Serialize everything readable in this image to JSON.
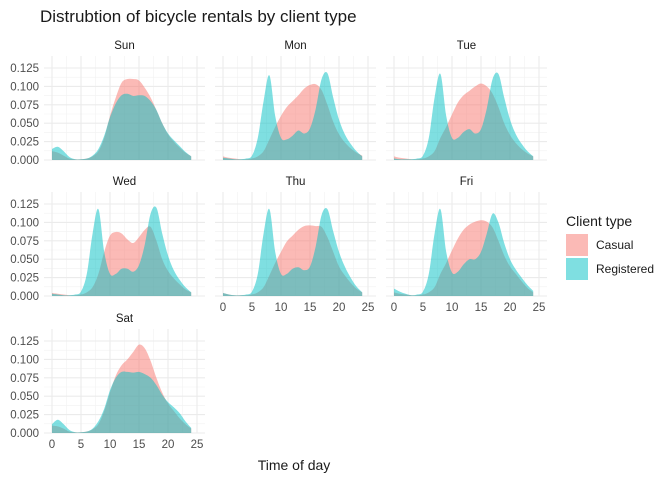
{
  "chart_data": {
    "type": "area",
    "title": "Distrubtion of bicycle rentals by client type",
    "xlabel": "Time of day",
    "ylabel": "",
    "xlim": [
      0,
      25
    ],
    "ylim": [
      0,
      0.125
    ],
    "x_ticks": [
      0,
      5,
      10,
      15,
      20,
      25
    ],
    "x_tick_labels": [
      "0",
      "5",
      "10",
      "15",
      "20",
      "25"
    ],
    "y_ticks": [
      0,
      0.025,
      0.05,
      0.075,
      0.1,
      0.125
    ],
    "y_tick_labels": [
      "0.000",
      "0.025",
      "0.050",
      "0.075",
      "0.100",
      "0.125"
    ],
    "grid": true,
    "legend": {
      "title": "Client type",
      "position": "right",
      "entries": [
        {
          "label": "Casual",
          "color": "#F8766D"
        },
        {
          "label": "Registered",
          "color": "#00BFC4"
        }
      ]
    },
    "facets": [
      {
        "label": "Sun",
        "series": [
          {
            "name": "Casual",
            "x": [
              0,
              1,
              2,
              3,
              4,
              5,
              6,
              7,
              8,
              9,
              10,
              11,
              12,
              13,
              14,
              15,
              16,
              17,
              18,
              19,
              20,
              21,
              22,
              23,
              24
            ],
            "y": [
              0.012,
              0.01,
              0.006,
              0.002,
              0.001,
              0.001,
              0.002,
              0.005,
              0.012,
              0.03,
              0.06,
              0.085,
              0.105,
              0.11,
              0.11,
              0.108,
              0.098,
              0.085,
              0.068,
              0.05,
              0.035,
              0.025,
              0.017,
              0.01,
              0.005
            ]
          },
          {
            "name": "Registered",
            "x": [
              0,
              1,
              2,
              3,
              4,
              5,
              6,
              7,
              8,
              9,
              10,
              11,
              12,
              13,
              14,
              15,
              16,
              17,
              18,
              19,
              20,
              21,
              22,
              23,
              24
            ],
            "y": [
              0.015,
              0.018,
              0.012,
              0.004,
              0.001,
              0.001,
              0.002,
              0.006,
              0.015,
              0.033,
              0.058,
              0.077,
              0.088,
              0.09,
              0.087,
              0.088,
              0.087,
              0.08,
              0.068,
              0.05,
              0.036,
              0.027,
              0.019,
              0.011,
              0.005
            ]
          }
        ]
      },
      {
        "label": "Mon",
        "series": [
          {
            "name": "Casual",
            "x": [
              0,
              1,
              2,
              3,
              4,
              5,
              6,
              7,
              8,
              9,
              10,
              11,
              12,
              13,
              14,
              15,
              16,
              17,
              18,
              19,
              20,
              21,
              22,
              23,
              24
            ],
            "y": [
              0.005,
              0.003,
              0.002,
              0.001,
              0.001,
              0.002,
              0.005,
              0.012,
              0.028,
              0.045,
              0.06,
              0.072,
              0.08,
              0.088,
              0.097,
              0.102,
              0.103,
              0.095,
              0.075,
              0.052,
              0.035,
              0.024,
              0.016,
              0.01,
              0.006
            ]
          },
          {
            "name": "Registered",
            "x": [
              0,
              1,
              2,
              3,
              4,
              5,
              6,
              7,
              8,
              9,
              10,
              11,
              12,
              13,
              14,
              15,
              16,
              17,
              18,
              19,
              20,
              21,
              22,
              23,
              24
            ],
            "y": [
              0.003,
              0.002,
              0.001,
              0.001,
              0.002,
              0.006,
              0.03,
              0.08,
              0.115,
              0.06,
              0.03,
              0.028,
              0.033,
              0.04,
              0.036,
              0.043,
              0.07,
              0.11,
              0.118,
              0.085,
              0.055,
              0.035,
              0.022,
              0.012,
              0.005
            ]
          }
        ]
      },
      {
        "label": "Tue",
        "series": [
          {
            "name": "Casual",
            "x": [
              0,
              1,
              2,
              3,
              4,
              5,
              6,
              7,
              8,
              9,
              10,
              11,
              12,
              13,
              14,
              15,
              16,
              17,
              18,
              19,
              20,
              21,
              22,
              23,
              24
            ],
            "y": [
              0.005,
              0.003,
              0.002,
              0.001,
              0.001,
              0.002,
              0.005,
              0.012,
              0.03,
              0.045,
              0.062,
              0.078,
              0.088,
              0.094,
              0.1,
              0.104,
              0.1,
              0.09,
              0.072,
              0.05,
              0.034,
              0.023,
              0.015,
              0.009,
              0.005
            ]
          },
          {
            "name": "Registered",
            "x": [
              0,
              1,
              2,
              3,
              4,
              5,
              6,
              7,
              8,
              9,
              10,
              11,
              12,
              13,
              14,
              15,
              16,
              17,
              18,
              19,
              20,
              21,
              22,
              23,
              24
            ],
            "y": [
              0.002,
              0.001,
              0.001,
              0.001,
              0.002,
              0.006,
              0.03,
              0.085,
              0.117,
              0.06,
              0.03,
              0.03,
              0.038,
              0.042,
              0.036,
              0.042,
              0.07,
              0.11,
              0.117,
              0.085,
              0.055,
              0.035,
              0.022,
              0.012,
              0.005
            ]
          }
        ]
      },
      {
        "label": "Wed",
        "series": [
          {
            "name": "Casual",
            "x": [
              0,
              1,
              2,
              3,
              4,
              5,
              6,
              7,
              8,
              9,
              10,
              11,
              12,
              13,
              14,
              15,
              16,
              17,
              18,
              19,
              20,
              21,
              22,
              23,
              24
            ],
            "y": [
              0.004,
              0.003,
              0.002,
              0.001,
              0.001,
              0.002,
              0.005,
              0.012,
              0.03,
              0.06,
              0.082,
              0.087,
              0.085,
              0.077,
              0.072,
              0.08,
              0.09,
              0.094,
              0.075,
              0.05,
              0.034,
              0.024,
              0.016,
              0.009,
              0.005
            ]
          },
          {
            "name": "Registered",
            "x": [
              0,
              1,
              2,
              3,
              4,
              5,
              6,
              7,
              8,
              9,
              10,
              11,
              12,
              13,
              14,
              15,
              16,
              17,
              18,
              19,
              20,
              21,
              22,
              23,
              24
            ],
            "y": [
              0.003,
              0.002,
              0.001,
              0.001,
              0.002,
              0.006,
              0.03,
              0.085,
              0.118,
              0.06,
              0.03,
              0.03,
              0.037,
              0.037,
              0.033,
              0.042,
              0.07,
              0.112,
              0.12,
              0.085,
              0.055,
              0.035,
              0.022,
              0.012,
              0.005
            ]
          }
        ]
      },
      {
        "label": "Thu",
        "series": [
          {
            "name": "Casual",
            "x": [
              0,
              1,
              2,
              3,
              4,
              5,
              6,
              7,
              8,
              9,
              10,
              11,
              12,
              13,
              14,
              15,
              16,
              17,
              18,
              19,
              20,
              21,
              22,
              23,
              24
            ],
            "y": [
              0.004,
              0.002,
              0.001,
              0.001,
              0.001,
              0.002,
              0.005,
              0.012,
              0.028,
              0.045,
              0.06,
              0.074,
              0.082,
              0.09,
              0.095,
              0.096,
              0.095,
              0.094,
              0.08,
              0.06,
              0.04,
              0.028,
              0.018,
              0.01,
              0.005
            ]
          },
          {
            "name": "Registered",
            "x": [
              0,
              1,
              2,
              3,
              4,
              5,
              6,
              7,
              8,
              9,
              10,
              11,
              12,
              13,
              14,
              15,
              16,
              17,
              18,
              19,
              20,
              21,
              22,
              23,
              24
            ],
            "y": [
              0.004,
              0.002,
              0.001,
              0.001,
              0.002,
              0.006,
              0.03,
              0.085,
              0.118,
              0.06,
              0.03,
              0.03,
              0.037,
              0.039,
              0.035,
              0.04,
              0.068,
              0.11,
              0.118,
              0.088,
              0.06,
              0.04,
              0.025,
              0.013,
              0.005
            ]
          }
        ]
      },
      {
        "label": "Fri",
        "series": [
          {
            "name": "Casual",
            "x": [
              0,
              1,
              2,
              3,
              4,
              5,
              6,
              7,
              8,
              9,
              10,
              11,
              12,
              13,
              14,
              15,
              16,
              17,
              18,
              19,
              20,
              21,
              22,
              23,
              24
            ],
            "y": [
              0.005,
              0.003,
              0.002,
              0.001,
              0.001,
              0.002,
              0.005,
              0.012,
              0.03,
              0.045,
              0.062,
              0.078,
              0.09,
              0.097,
              0.101,
              0.103,
              0.101,
              0.093,
              0.075,
              0.055,
              0.04,
              0.03,
              0.02,
              0.011,
              0.005
            ]
          },
          {
            "name": "Registered",
            "x": [
              0,
              1,
              2,
              3,
              4,
              5,
              6,
              7,
              8,
              9,
              10,
              11,
              12,
              13,
              14,
              15,
              16,
              17,
              18,
              19,
              20,
              21,
              22,
              23,
              24
            ],
            "y": [
              0.01,
              0.006,
              0.003,
              0.001,
              0.002,
              0.006,
              0.03,
              0.085,
              0.118,
              0.06,
              0.032,
              0.033,
              0.043,
              0.05,
              0.05,
              0.06,
              0.085,
              0.112,
              0.1,
              0.072,
              0.05,
              0.036,
              0.025,
              0.015,
              0.007
            ]
          }
        ]
      },
      {
        "label": "Sat",
        "series": [
          {
            "name": "Casual",
            "x": [
              0,
              1,
              2,
              3,
              4,
              5,
              6,
              7,
              8,
              9,
              10,
              11,
              12,
              13,
              14,
              15,
              16,
              17,
              18,
              19,
              20,
              21,
              22,
              23,
              24
            ],
            "y": [
              0.01,
              0.009,
              0.006,
              0.002,
              0.001,
              0.001,
              0.002,
              0.005,
              0.012,
              0.03,
              0.055,
              0.078,
              0.092,
              0.1,
              0.11,
              0.12,
              0.115,
              0.098,
              0.075,
              0.055,
              0.04,
              0.03,
              0.02,
              0.012,
              0.006
            ]
          },
          {
            "name": "Registered",
            "x": [
              0,
              1,
              2,
              3,
              4,
              5,
              6,
              7,
              8,
              9,
              10,
              11,
              12,
              13,
              14,
              15,
              16,
              17,
              18,
              19,
              20,
              21,
              22,
              23,
              24
            ],
            "y": [
              0.012,
              0.018,
              0.012,
              0.004,
              0.001,
              0.001,
              0.002,
              0.006,
              0.016,
              0.033,
              0.058,
              0.075,
              0.083,
              0.083,
              0.082,
              0.083,
              0.08,
              0.075,
              0.065,
              0.052,
              0.042,
              0.035,
              0.027,
              0.016,
              0.007
            ]
          }
        ]
      }
    ]
  }
}
